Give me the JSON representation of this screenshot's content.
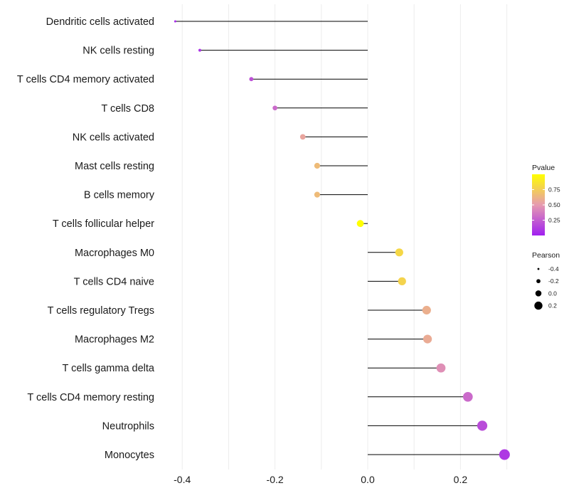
{
  "chart_data": {
    "type": "lollipop",
    "title": "",
    "xlabel": "",
    "ylabel": "",
    "xlim": [
      -0.4,
      0.3
    ],
    "x_ticks": [
      -0.4,
      -0.2,
      0.0,
      0.2
    ],
    "x_tick_labels": [
      "-0.4",
      "-0.2",
      "0.0",
      "0.2"
    ],
    "grid": true,
    "categories": [
      "Dendritic cells activated",
      "NK cells resting",
      "T cells CD4 memory activated",
      "T cells CD8",
      "NK cells activated",
      "Mast cells resting",
      "B cells memory",
      "T cells follicular helper",
      "Macrophages M0",
      "T cells CD4 naive",
      "T cells regulatory  Tregs",
      "Macrophages M2",
      "T cells gamma delta",
      "T cells CD4 memory resting",
      "Neutrophils",
      "Monocytes"
    ],
    "pearson": [
      -0.415,
      -0.362,
      -0.251,
      -0.2,
      -0.14,
      -0.109,
      -0.109,
      -0.016,
      0.068,
      0.074,
      0.127,
      0.129,
      0.158,
      0.216,
      0.247,
      0.295
    ],
    "pvalue": [
      0.05,
      0.08,
      0.2,
      0.3,
      0.55,
      0.66,
      0.66,
      1.0,
      0.8,
      0.78,
      0.6,
      0.58,
      0.45,
      0.3,
      0.18,
      0.1
    ],
    "legend_color": {
      "title": "Pvalue",
      "ticks": [
        "0.75",
        "0.50",
        "0.25"
      ],
      "tick_values": [
        0.75,
        0.5,
        0.25
      ],
      "range": [
        0.0,
        1.0
      ],
      "low_color": "#a020f0",
      "mid_color": "#e69bb0",
      "high_color": "#ffff00"
    },
    "legend_size": {
      "title": "Pearson",
      "labels": [
        "-0.4",
        "-0.2",
        "0.0",
        "0.2"
      ],
      "values": [
        -0.4,
        -0.2,
        0.0,
        0.2
      ]
    },
    "legend_position": "right"
  }
}
